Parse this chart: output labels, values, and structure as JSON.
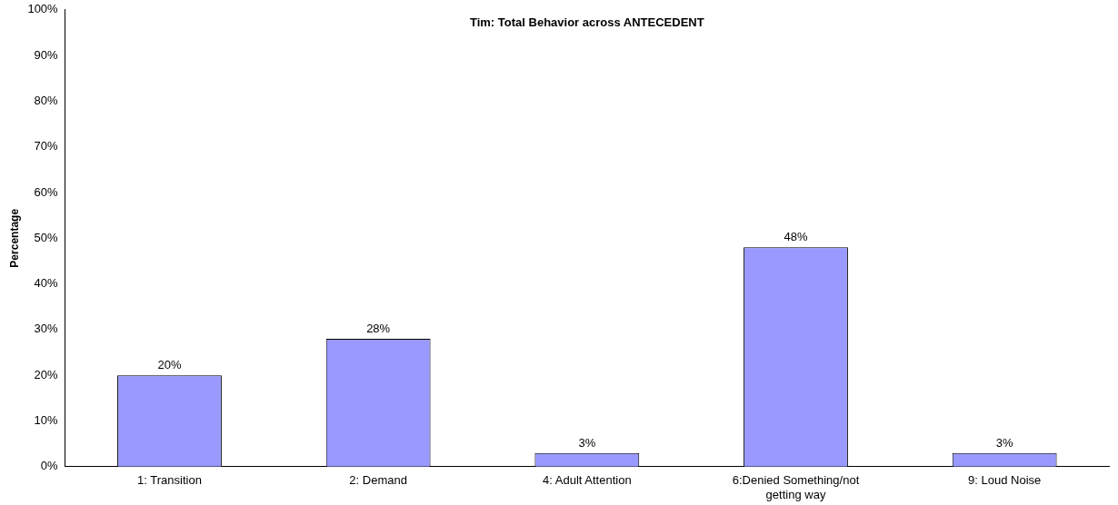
{
  "chart_data": {
    "type": "bar",
    "title": "Tim: Total Behavior across ANTECEDENT",
    "ylabel": "Percentage",
    "categories": [
      "1: Transition",
      "2: Demand",
      "4: Adult Attention",
      "6:Denied Something/not getting way",
      "9: Loud Noise"
    ],
    "values": [
      20,
      28,
      3,
      48,
      3
    ],
    "value_labels": [
      "20%",
      "28%",
      "3%",
      "48%",
      "3%"
    ],
    "color": "#9999ff",
    "ylim": [
      0,
      100
    ],
    "yticks": [
      {
        "value": 0,
        "label": "0%"
      },
      {
        "value": 10,
        "label": "10%"
      },
      {
        "value": 20,
        "label": "20%"
      },
      {
        "value": 30,
        "label": "30%"
      },
      {
        "value": 40,
        "label": "40%"
      },
      {
        "value": 50,
        "label": "50%"
      },
      {
        "value": 60,
        "label": "60%"
      },
      {
        "value": 70,
        "label": "70%"
      },
      {
        "value": 80,
        "label": "80%"
      },
      {
        "value": 90,
        "label": "90%"
      },
      {
        "value": 100,
        "label": "100%"
      }
    ],
    "grid": false,
    "legend": false
  }
}
